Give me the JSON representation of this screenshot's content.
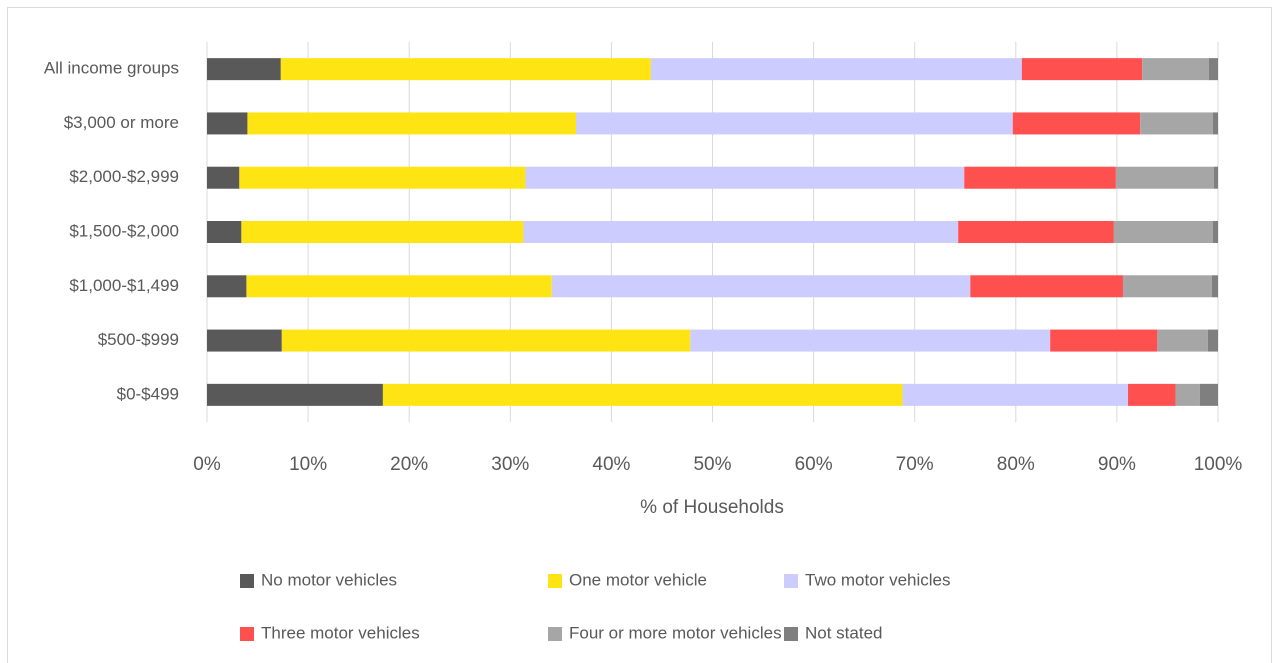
{
  "chart_data": {
    "type": "bar",
    "orientation": "horizontal",
    "stacked": true,
    "x_label": "% of Households",
    "categories": [
      "All income groups",
      "$3,000 or more",
      "$2,000-$2,999",
      "$1,500-$2,000",
      "$1,000-$1,499",
      "$500-$999",
      "$0-$499"
    ],
    "series": [
      {
        "name": "No motor vehicles",
        "color": "#595959",
        "values": [
          7.3,
          4.0,
          3.2,
          3.4,
          3.9,
          7.4,
          17.4
        ]
      },
      {
        "name": "One motor vehicle",
        "color": "#ffe413",
        "values": [
          36.6,
          32.5,
          28.3,
          27.9,
          30.2,
          40.4,
          51.4
        ]
      },
      {
        "name": "Two motor vehicles",
        "color": "#ccccff",
        "values": [
          36.7,
          43.2,
          43.4,
          43.0,
          41.4,
          35.6,
          22.3
        ]
      },
      {
        "name": "Three motor vehicles",
        "color": "#ff5050",
        "values": [
          11.9,
          12.6,
          15.0,
          15.4,
          15.1,
          10.6,
          4.7
        ]
      },
      {
        "name": "Four or more motor vehicles",
        "color": "#a6a6a6",
        "values": [
          6.6,
          7.2,
          9.7,
          9.8,
          8.8,
          5.0,
          2.4
        ]
      },
      {
        "name": "Not stated",
        "color": "#7f7f7f",
        "values": [
          0.9,
          0.5,
          0.4,
          0.5,
          0.6,
          1.0,
          1.8
        ]
      }
    ],
    "xlim": [
      0,
      100
    ],
    "xticks": [
      {
        "value": 0,
        "label": "0%"
      },
      {
        "value": 10,
        "label": "10%"
      },
      {
        "value": 20,
        "label": "20%"
      },
      {
        "value": 30,
        "label": "30%"
      },
      {
        "value": 40,
        "label": "40%"
      },
      {
        "value": 50,
        "label": "50%"
      },
      {
        "value": 60,
        "label": "60%"
      },
      {
        "value": 70,
        "label": "70%"
      },
      {
        "value": 80,
        "label": "80%"
      },
      {
        "value": 90,
        "label": "90%"
      },
      {
        "value": 100,
        "label": "100%"
      }
    ],
    "grid": true,
    "legend": "bottom"
  }
}
